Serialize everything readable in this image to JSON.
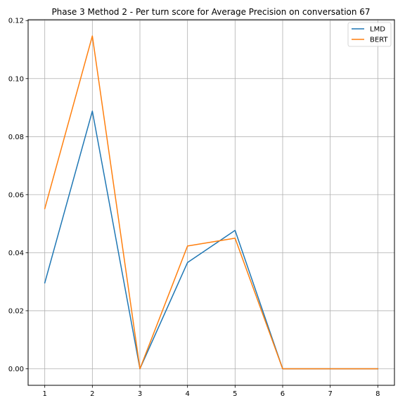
{
  "chart_data": {
    "type": "line",
    "title": "Phase 3 Method 2 - Per turn score for Average Precision on conversation 67",
    "xlabel": "",
    "ylabel": "",
    "x": [
      1,
      2,
      3,
      4,
      5,
      6,
      7,
      8
    ],
    "x_ticks": [
      "1",
      "2",
      "3",
      "4",
      "5",
      "6",
      "7",
      "8"
    ],
    "y_ticks": [
      "0.00",
      "0.02",
      "0.04",
      "0.06",
      "0.08",
      "0.10",
      "0.12"
    ],
    "xlim": [
      0.65,
      8.35
    ],
    "ylim": [
      -0.0057,
      0.1203
    ],
    "grid": true,
    "legend_position": "top-right",
    "series": [
      {
        "name": "LMD",
        "color": "#1f77b4",
        "values": [
          0.0296,
          0.0888,
          0.0,
          0.0366,
          0.0477,
          0.0,
          0.0,
          0.0
        ]
      },
      {
        "name": "BERT",
        "color": "#ff7f0e",
        "values": [
          0.0552,
          0.1147,
          0.0,
          0.0423,
          0.045,
          0.0,
          0.0,
          0.0
        ]
      }
    ]
  }
}
